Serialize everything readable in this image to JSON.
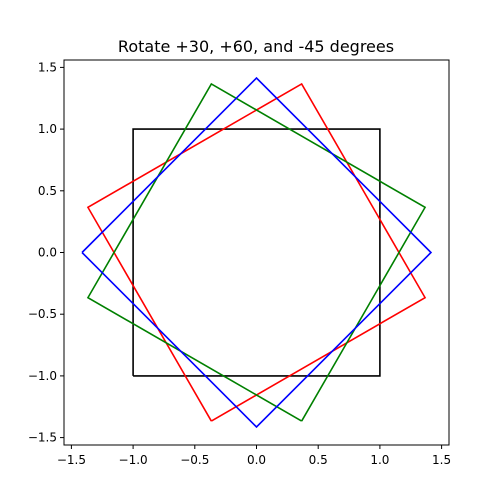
{
  "chart_data": {
    "type": "line",
    "title": "Rotate +30, +60, and -45 degrees",
    "xlabel": "",
    "ylabel": "",
    "xlim": [
      -1.56,
      1.56
    ],
    "ylim": [
      -1.56,
      1.56
    ],
    "xticks": [
      -1.5,
      -1.0,
      -0.5,
      0.0,
      0.5,
      1.0,
      1.5
    ],
    "xtick_labels": [
      "−1.5",
      "−1.0",
      "−0.5",
      "0.0",
      "0.5",
      "1.0",
      "1.5"
    ],
    "yticks": [
      -1.5,
      -1.0,
      -0.5,
      0.0,
      0.5,
      1.0,
      1.5
    ],
    "ytick_labels": [
      "−1.5",
      "−1.0",
      "−0.5",
      "0.0",
      "0.5",
      "1.0",
      "1.5"
    ],
    "grid": false,
    "series": [
      {
        "color": "#000000",
        "x": [
          -1,
          1,
          1,
          -1,
          -1
        ],
        "y": [
          -1,
          -1,
          1,
          1,
          -1
        ]
      },
      {
        "color": "#ff0000",
        "x": [
          -0.366,
          1.366,
          0.366,
          -1.366,
          -0.366
        ],
        "y": [
          -1.366,
          -0.366,
          1.366,
          0.366,
          -1.366
        ]
      },
      {
        "color": "#008000",
        "x": [
          0.366,
          1.366,
          -0.366,
          -1.366,
          0.366
        ],
        "y": [
          -1.366,
          0.366,
          1.366,
          -0.366,
          -1.366
        ]
      },
      {
        "color": "#0000ff",
        "x": [
          -1.414,
          0.0,
          1.414,
          0.0,
          -1.414
        ],
        "y": [
          0.0,
          -1.414,
          0.0,
          1.414,
          0.0
        ]
      }
    ]
  }
}
